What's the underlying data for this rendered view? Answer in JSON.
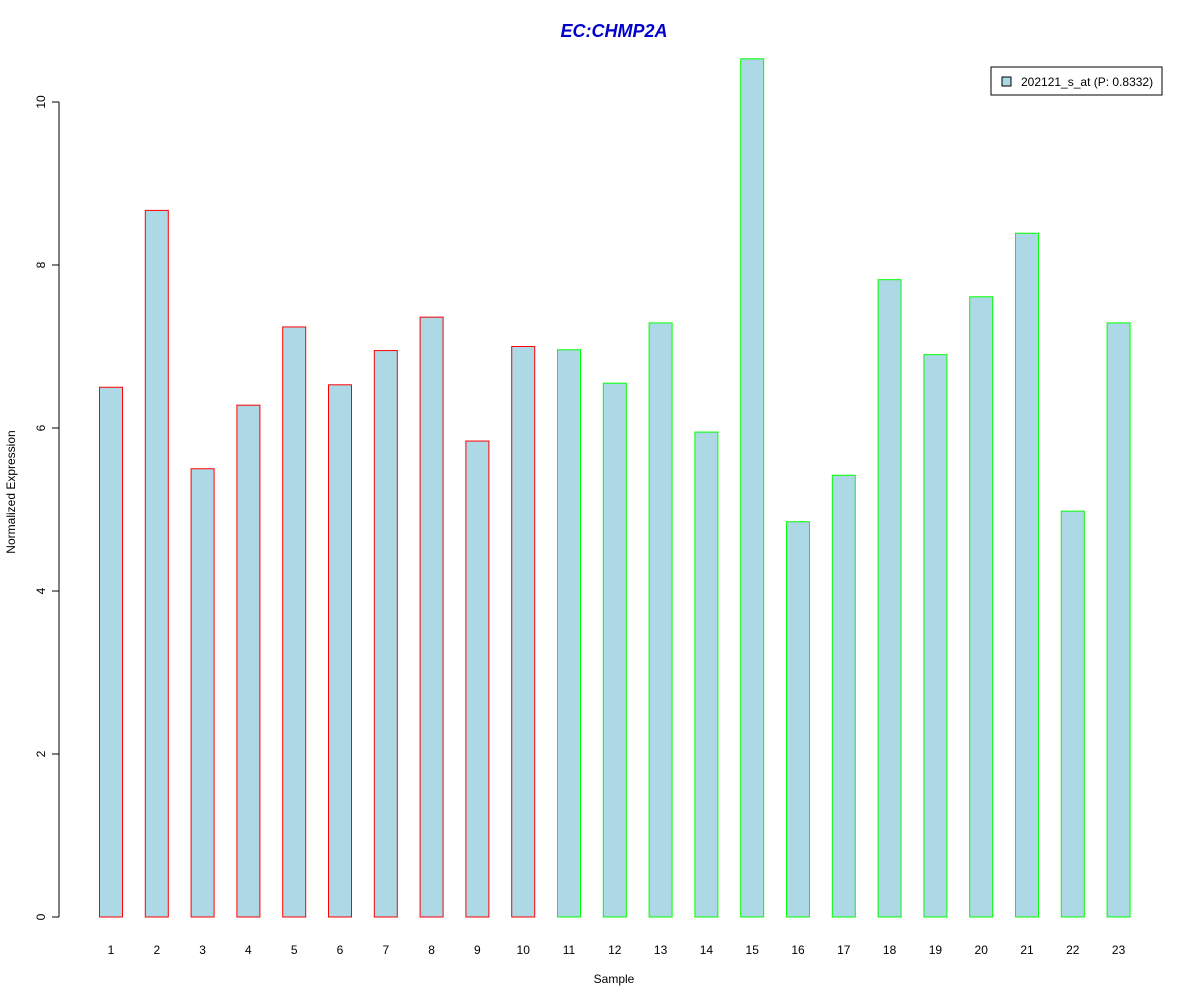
{
  "colors": {
    "bar_fill": "#add8e6",
    "group1_border": "#ff0000",
    "group2_border": "#00ff00",
    "title": "#0000cc",
    "axis": "#000000"
  },
  "chart_data": {
    "type": "bar",
    "title": "EC:CHMP2A",
    "xlabel": "Sample",
    "ylabel": "Normalized Expression",
    "ylim": [
      0,
      10.5
    ],
    "yticks": [
      "0",
      "2",
      "4",
      "6",
      "8",
      "10"
    ],
    "legend": {
      "position": "top-right",
      "label": "202121_s_at (P: 0.8332)"
    },
    "grid": false,
    "categories": [
      "1",
      "2",
      "3",
      "4",
      "5",
      "6",
      "7",
      "8",
      "9",
      "10",
      "11",
      "12",
      "13",
      "14",
      "15",
      "16",
      "17",
      "18",
      "19",
      "20",
      "21",
      "22",
      "23"
    ],
    "values": [
      6.5,
      8.67,
      5.5,
      6.28,
      7.24,
      6.53,
      6.95,
      7.36,
      5.84,
      7.0,
      6.96,
      6.55,
      7.29,
      5.95,
      10.53,
      4.85,
      5.42,
      7.82,
      6.9,
      7.61,
      8.39,
      4.98,
      7.29
    ],
    "groups": [
      1,
      1,
      1,
      1,
      1,
      1,
      1,
      1,
      1,
      1,
      2,
      2,
      2,
      2,
      2,
      2,
      2,
      2,
      2,
      2,
      2,
      2,
      2
    ]
  }
}
